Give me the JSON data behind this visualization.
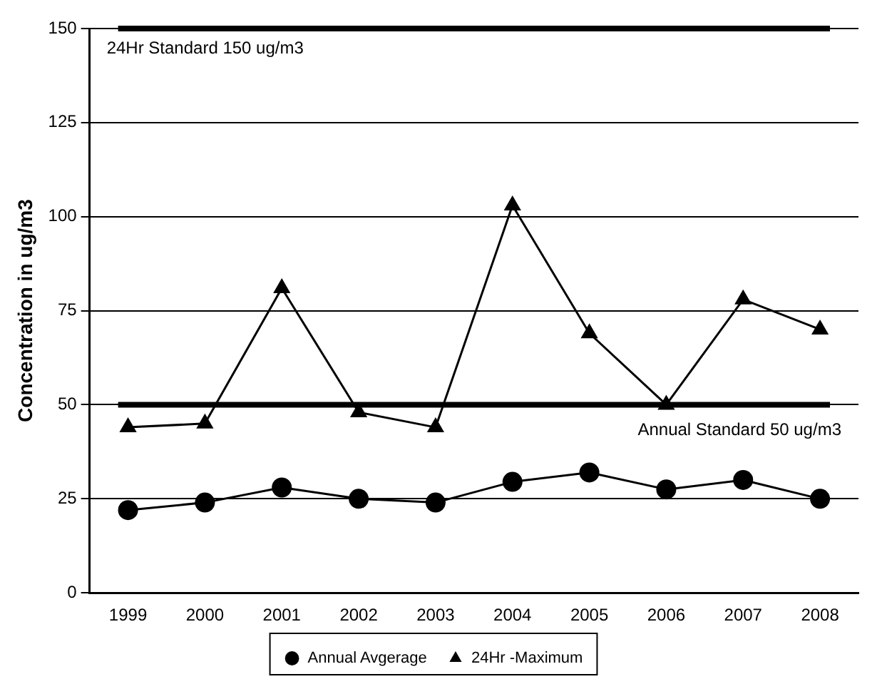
{
  "chart_data": {
    "type": "line",
    "ylabel": "Concentration in ug/m3",
    "categories": [
      "1999",
      "2000",
      "2001",
      "2002",
      "2003",
      "2004",
      "2005",
      "2006",
      "2007",
      "2008"
    ],
    "series": [
      {
        "name": "Annual Avgerage",
        "color": "#000000",
        "marker": "circle",
        "values": [
          22,
          24,
          28,
          25,
          24,
          29.5,
          32,
          27.5,
          30,
          25
        ]
      },
      {
        "name": "24Hr -Maximum",
        "color": "#000000",
        "marker": "triangle",
        "values": [
          44,
          45,
          81,
          48,
          44,
          103,
          69,
          50,
          78,
          70
        ]
      }
    ],
    "ylim": [
      0,
      150
    ],
    "yticks": [
      0,
      25,
      50,
      75,
      100,
      125,
      150
    ],
    "grid": "y",
    "legend": "bottom",
    "line_style": "solid",
    "ref_lines": [
      {
        "axis": "y",
        "value": 150,
        "label": "24Hr Standard 150 ug/m3",
        "color": "#000000"
      },
      {
        "axis": "y",
        "value": 50,
        "label": "Annual Standard 50 ug/m3",
        "color": "#000000"
      }
    ]
  }
}
